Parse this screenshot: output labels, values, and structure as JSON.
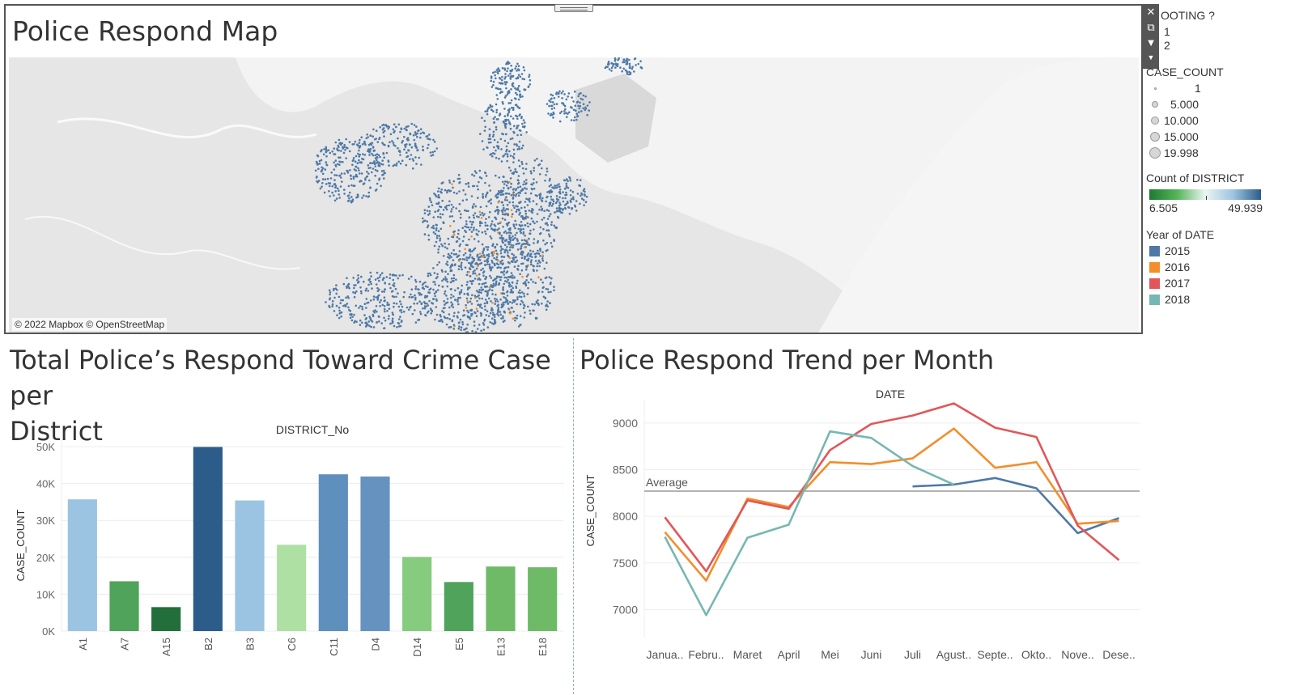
{
  "map": {
    "title": "Police Respond Map",
    "attribution": "© 2022 Mapbox © OpenStreetMap",
    "colors": {
      "base": "#e8e8e8",
      "land": "#f2f2f2",
      "water": "#dcdcdc",
      "points_2015": "#4e79a7",
      "points_2016": "#f28e2b"
    }
  },
  "toolbar": {
    "close_icon": "close-icon",
    "popout_icon": "popout-icon",
    "filter_icon": "filter-icon",
    "menu_icon": "menu-arrow-icon"
  },
  "legend_shooting": {
    "title": "OOTING ?",
    "items": [
      "1",
      "2"
    ]
  },
  "legend_case_count": {
    "title": "CASE_COUNT",
    "items": [
      "1",
      "5.000",
      "10.000",
      "15.000",
      "19.998"
    ]
  },
  "legend_district": {
    "title": "Count of DISTRICT",
    "min": "6.505",
    "max": "49.939",
    "colors": [
      "#1e7a31",
      "#56b45b",
      "#eaf5f0",
      "#9ec4e2",
      "#2b5c8a"
    ]
  },
  "legend_year": {
    "title": "Year of DATE",
    "items": [
      {
        "label": "2015",
        "color": "#4e79a7"
      },
      {
        "label": "2016",
        "color": "#f28e2b"
      },
      {
        "label": "2017",
        "color": "#e15759"
      },
      {
        "label": "2018",
        "color": "#76b7b2"
      }
    ]
  },
  "bar_panel": {
    "title_line1": "Total Police’s Respond Toward Crime Case per",
    "title_line2": "District"
  },
  "line_panel": {
    "title": "Police Respond Trend per Month"
  },
  "chart_data": [
    {
      "type": "bar",
      "title": "Total Police’s Respond Toward Crime Case per District",
      "xlabel": "DISTRICT_No",
      "ylabel": "CASE_COUNT",
      "ylim": [
        0,
        50000
      ],
      "yticks": [
        "0K",
        "10K",
        "20K",
        "30K",
        "40K",
        "50K"
      ],
      "categories": [
        "A1",
        "A7",
        "A15",
        "B2",
        "B3",
        "C6",
        "C11",
        "D4",
        "D14",
        "E5",
        "E13",
        "E18"
      ],
      "values": [
        35700,
        13500,
        6500,
        49900,
        35400,
        23400,
        42500,
        41900,
        20100,
        13300,
        17500,
        17300
      ],
      "colors": [
        "#9ac4e1",
        "#4fa35a",
        "#236f3b",
        "#2b5c8a",
        "#9ac4e1",
        "#aee0a4",
        "#5f8fbd",
        "#6692c0",
        "#86cc7e",
        "#4fa35a",
        "#6fba67",
        "#6fba67"
      ],
      "grid": true
    },
    {
      "type": "line",
      "title": "Police Respond Trend per Month",
      "xlabel": "DATE",
      "ylabel": "CASE_COUNT",
      "ylim": [
        6700,
        9250
      ],
      "yticks": [
        "7000",
        "7500",
        "8000",
        "8500",
        "9000"
      ],
      "categories": [
        "Janua..",
        "Febru..",
        "Maret",
        "April",
        "Mei",
        "Juni",
        "Juli",
        "Agust..",
        "Septe..",
        "Okto..",
        "Nove..",
        "Dese.."
      ],
      "series": [
        {
          "name": "2015",
          "color": "#4e79a7",
          "values": [
            null,
            null,
            null,
            null,
            null,
            null,
            8320,
            8340,
            8410,
            8300,
            7820,
            7980
          ]
        },
        {
          "name": "2016",
          "color": "#f28e2b",
          "values": [
            7830,
            7310,
            8190,
            8100,
            8580,
            8560,
            8620,
            8940,
            8520,
            8580,
            7920,
            7950
          ]
        },
        {
          "name": "2017",
          "color": "#e15759",
          "values": [
            7990,
            7410,
            8170,
            8080,
            8710,
            8990,
            9080,
            9210,
            8950,
            8850,
            7900,
            7530
          ]
        },
        {
          "name": "2018",
          "color": "#76b7b2",
          "values": [
            7780,
            6940,
            7770,
            7910,
            8910,
            8840,
            8540,
            8340,
            null,
            null,
            null,
            null
          ]
        }
      ],
      "reference_line": {
        "label": "Average",
        "value": 8270
      },
      "grid": true
    }
  ]
}
